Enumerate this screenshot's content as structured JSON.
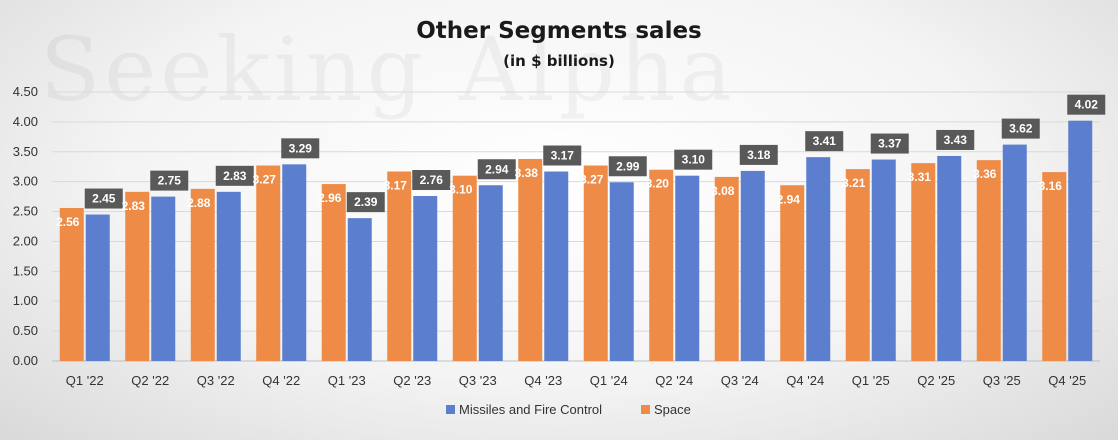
{
  "chart_data": {
    "type": "bar",
    "title": "Other Segments sales",
    "subtitle": "(in $ billions)",
    "watermark": "Seeking Alpha",
    "categories": [
      "Q1 '22",
      "Q2 '22",
      "Q3 '22",
      "Q4 '22",
      "Q1 '23",
      "Q2 '23",
      "Q3 '23",
      "Q4 '23",
      "Q1 '24",
      "Q2 '24",
      "Q3 '24",
      "Q4 '24",
      "Q1 '25",
      "Q2 '25",
      "Q3 '25",
      "Q4 '25"
    ],
    "series": [
      {
        "name": "Space",
        "color": "#ED8B47",
        "values": [
          2.56,
          2.83,
          2.88,
          3.27,
          2.96,
          3.17,
          3.1,
          3.38,
          3.27,
          3.2,
          3.08,
          2.94,
          3.21,
          3.31,
          3.36,
          3.16
        ]
      },
      {
        "name": "Missiles and Fire Control",
        "color": "#5B7FCE",
        "values": [
          2.45,
          2.75,
          2.83,
          3.29,
          2.39,
          2.76,
          2.94,
          3.17,
          2.99,
          3.1,
          3.18,
          3.41,
          3.37,
          3.43,
          3.62,
          4.02
        ]
      }
    ],
    "legend_order": [
      "Missiles and Fire Control",
      "Space"
    ],
    "yticks": [
      "0.00",
      "0.50",
      "1.00",
      "1.50",
      "2.00",
      "2.50",
      "3.00",
      "3.50",
      "4.00",
      "4.50"
    ],
    "ylim": [
      0,
      4.5
    ],
    "grid": true,
    "legend_position": "bottom"
  }
}
